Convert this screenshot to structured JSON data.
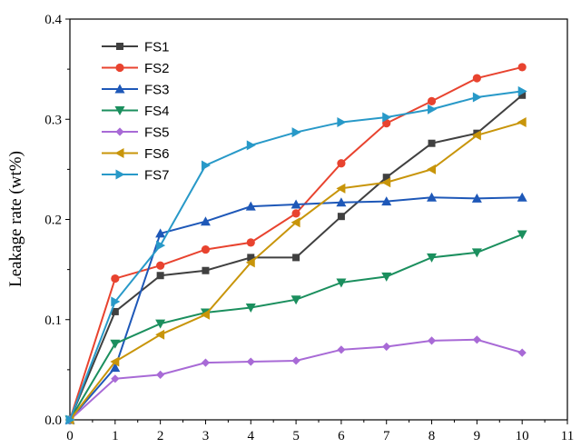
{
  "chart_data": {
    "type": "line",
    "title": "",
    "xlabel": "",
    "ylabel": "Leakage rate (wt%)",
    "xlim": [
      0,
      11
    ],
    "ylim": [
      0,
      0.4
    ],
    "xticks": [
      "0",
      "1",
      "2",
      "3",
      "4",
      "5",
      "6",
      "7",
      "8",
      "9",
      "10",
      "11"
    ],
    "yticks": [
      "0.0",
      "0.1",
      "0.2",
      "0.3",
      "0.4"
    ],
    "grid": false,
    "legend_position": "top-left",
    "x": [
      0,
      1,
      2,
      3,
      4,
      5,
      6,
      7,
      8,
      9,
      10
    ],
    "series": [
      {
        "name": "FS1",
        "color": "#404040",
        "marker": "square",
        "values": [
          0,
          0.108,
          0.144,
          0.149,
          0.162,
          0.162,
          0.203,
          0.242,
          0.276,
          0.286,
          0.324
        ]
      },
      {
        "name": "FS2",
        "color": "#e8432f",
        "marker": "circle",
        "values": [
          0,
          0.141,
          0.154,
          0.17,
          0.177,
          0.206,
          0.256,
          0.296,
          0.318,
          0.341,
          0.352
        ]
      },
      {
        "name": "FS3",
        "color": "#1e58b8",
        "marker": "triangle-up",
        "values": [
          0,
          0.052,
          0.186,
          0.198,
          0.213,
          0.215,
          0.217,
          0.218,
          0.222,
          0.221,
          0.222
        ]
      },
      {
        "name": "FS4",
        "color": "#1b8f5e",
        "marker": "triangle-down",
        "values": [
          0,
          0.076,
          0.096,
          0.107,
          0.112,
          0.12,
          0.137,
          0.143,
          0.162,
          0.167,
          0.185
        ]
      },
      {
        "name": "FS5",
        "color": "#a86ad6",
        "marker": "diamond",
        "values": [
          0,
          0.041,
          0.045,
          0.057,
          0.058,
          0.059,
          0.07,
          0.073,
          0.079,
          0.08,
          0.067
        ]
      },
      {
        "name": "FS6",
        "color": "#c8950a",
        "marker": "triangle-left",
        "values": [
          0,
          0.058,
          0.085,
          0.105,
          0.157,
          0.197,
          0.231,
          0.237,
          0.25,
          0.284,
          0.297
        ]
      },
      {
        "name": "FS7",
        "color": "#2899c8",
        "marker": "triangle-right",
        "values": [
          0,
          0.118,
          0.174,
          0.254,
          0.274,
          0.287,
          0.297,
          0.302,
          0.31,
          0.322,
          0.328
        ]
      }
    ]
  }
}
